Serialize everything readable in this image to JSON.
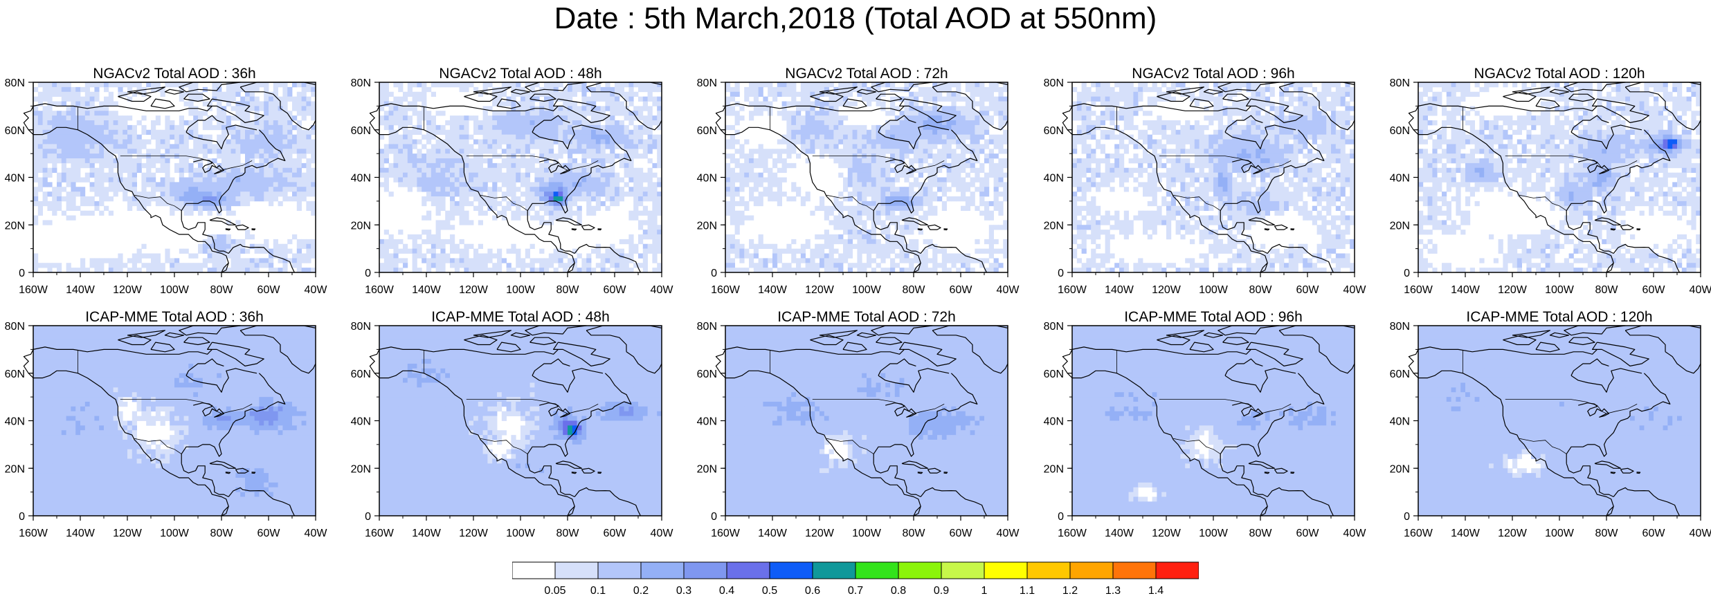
{
  "figure": {
    "title": "Date : 5th March,2018 (Total AOD at 550nm)"
  },
  "axes": {
    "lat_labels": [
      "80N",
      "60N",
      "40N",
      "20N",
      "0"
    ],
    "lon_labels": [
      "160W",
      "140W",
      "120W",
      "100W",
      "80W",
      "60W",
      "40W"
    ]
  },
  "panels": [
    {
      "title": "NGACv2 Total AOD : 36h",
      "model": "NGACv2",
      "lead_time": "36h"
    },
    {
      "title": "NGACv2 Total AOD : 48h",
      "model": "NGACv2",
      "lead_time": "48h"
    },
    {
      "title": "NGACv2 Total AOD : 72h",
      "model": "NGACv2",
      "lead_time": "72h"
    },
    {
      "title": "NGACv2 Total AOD : 96h",
      "model": "NGACv2",
      "lead_time": "96h"
    },
    {
      "title": "NGACv2 Total AOD : 120h",
      "model": "NGACv2",
      "lead_time": "120h"
    },
    {
      "title": "ICAP-MME Total AOD : 36h",
      "model": "ICAP-MME",
      "lead_time": "36h"
    },
    {
      "title": "ICAP-MME Total AOD : 48h",
      "model": "ICAP-MME",
      "lead_time": "48h"
    },
    {
      "title": "ICAP-MME Total AOD : 72h",
      "model": "ICAP-MME",
      "lead_time": "72h"
    },
    {
      "title": "ICAP-MME Total AOD : 96h",
      "model": "ICAP-MME",
      "lead_time": "96h"
    },
    {
      "title": "ICAP-MME Total AOD : 120h",
      "model": "ICAP-MME",
      "lead_time": "120h"
    }
  ],
  "colorbar": {
    "labels": [
      "0.05",
      "0.1",
      "0.2",
      "0.3",
      "0.4",
      "0.5",
      "0.6",
      "0.7",
      "0.8",
      "0.9",
      "1",
      "1.1",
      "1.2",
      "1.3",
      "1.4"
    ],
    "colors": [
      "#ffffff",
      "#d6e0fa",
      "#b3c6fa",
      "#94b0f6",
      "#7f97f0",
      "#6a70ea",
      "#0e5cf7",
      "#10989a",
      "#33e31b",
      "#8bf40a",
      "#c7f74a",
      "#ffff00",
      "#ffc800",
      "#ffa500",
      "#ff7409",
      "#ff2010"
    ]
  },
  "chart_data": {
    "type": "heatmap",
    "title": "Date : 5th March,2018 (Total AOD at 550nm)",
    "variable": "Total AOD at 550nm",
    "date": "5th March,2018",
    "models": [
      "NGACv2",
      "ICAP-MME"
    ],
    "lead_times": [
      "36h",
      "48h",
      "72h",
      "96h",
      "120h"
    ],
    "lon_range": [
      -160,
      -40
    ],
    "lat_range": [
      0,
      80
    ],
    "levels": [
      0.05,
      0.1,
      0.2,
      0.3,
      0.4,
      0.5,
      0.6,
      0.7,
      0.8,
      0.9,
      1,
      1.1,
      1.2,
      1.3,
      1.4
    ]
  },
  "map_colors": {
    "white": "#ffffff",
    "low": "#d6e0fa",
    "mid": "#b3c6fa",
    "high": "#94b0f6",
    "peak": "#7f97f0",
    "hotspot": "#33e31b",
    "coast": "#000000"
  }
}
